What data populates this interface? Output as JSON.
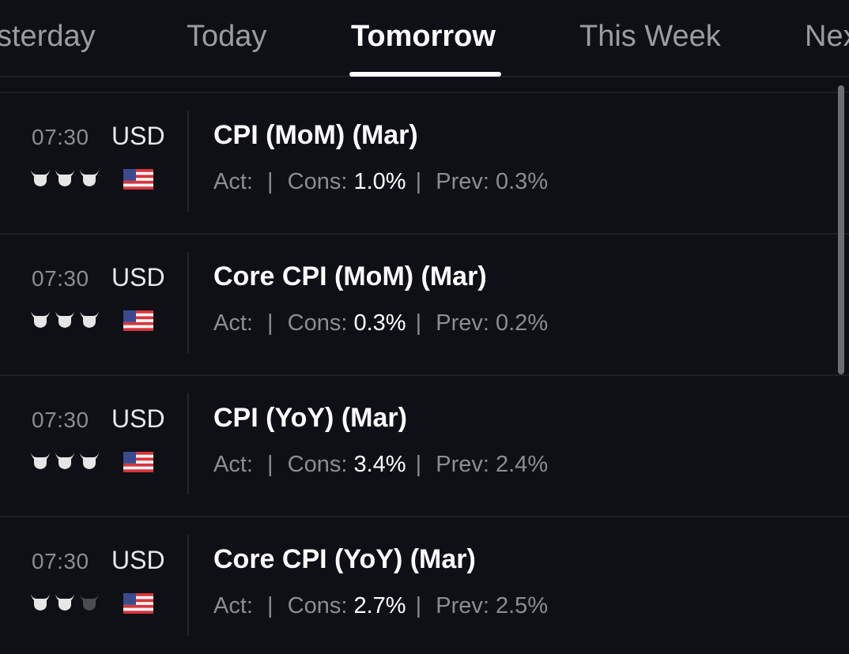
{
  "tabs": [
    {
      "label": "sterday",
      "active": false
    },
    {
      "label": "Today",
      "active": false
    },
    {
      "label": "Tomorrow",
      "active": true
    },
    {
      "label": "This Week",
      "active": false
    },
    {
      "label": "Nex",
      "active": false
    }
  ],
  "labels": {
    "actual": "Act:",
    "consensus": "Cons:",
    "previous": "Prev:",
    "separator": "|"
  },
  "events": [
    {
      "time": "07:30",
      "currency": "USD",
      "importance": 3,
      "flag_icon": "us-flag-icon",
      "title": "CPI (MoM) (Mar)",
      "actual": "",
      "consensus": "1.0%",
      "previous": "0.3%"
    },
    {
      "time": "07:30",
      "currency": "USD",
      "importance": 3,
      "flag_icon": "us-flag-icon",
      "title": "Core CPI (MoM) (Mar)",
      "actual": "",
      "consensus": "0.3%",
      "previous": "0.2%"
    },
    {
      "time": "07:30",
      "currency": "USD",
      "importance": 3,
      "flag_icon": "us-flag-icon",
      "title": "CPI (YoY) (Mar)",
      "actual": "",
      "consensus": "3.4%",
      "previous": "2.4%"
    },
    {
      "time": "07:30",
      "currency": "USD",
      "importance": 2,
      "flag_icon": "us-flag-icon",
      "title": "Core CPI (YoY) (Mar)",
      "actual": "",
      "consensus": "2.7%",
      "previous": "2.5%"
    }
  ],
  "colors": {
    "background": "#0e1015",
    "active_tab": "#ffffff",
    "inactive_tab": "#9a9ca3",
    "bull_active": "#e6e6e6",
    "bull_inactive": "#4a4c52"
  }
}
